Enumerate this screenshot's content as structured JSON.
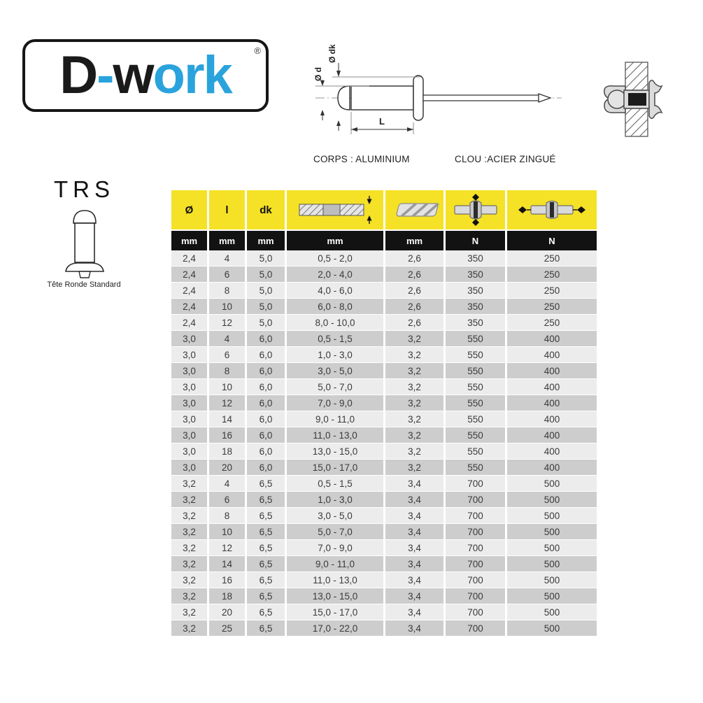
{
  "brand": {
    "name": "D-work",
    "logo_parts": {
      "p1": "D",
      "p2": "-",
      "p3": "w",
      "p4": "ork"
    },
    "registered_mark": "®"
  },
  "drawing": {
    "dim_d": "Ø d",
    "dim_dk": "Ø dk",
    "dim_length": "L",
    "body_material": "CORPS : ALUMINIUM",
    "nail_material": "CLOU :ACIER ZINGUÉ"
  },
  "product": {
    "code": "TRS",
    "head_type": "Tête Ronde Standard"
  },
  "colors": {
    "accent_yellow": "#f5e126",
    "header_black": "#121212",
    "row_light": "#ececec",
    "row_dark": "#cdcdcd",
    "logo_blue": "#2aa3dd"
  },
  "table": {
    "columns": [
      {
        "label": "Ø",
        "unit": "mm",
        "icon": null
      },
      {
        "label": "l",
        "unit": "mm",
        "icon": null
      },
      {
        "label": "dk",
        "unit": "mm",
        "icon": null
      },
      {
        "label": "",
        "unit": "mm",
        "icon": "clamp-thickness-icon"
      },
      {
        "label": "",
        "unit": "mm",
        "icon": "drill-hole-icon"
      },
      {
        "label": "",
        "unit": "N",
        "icon": "shear-strength-icon"
      },
      {
        "label": "",
        "unit": "N",
        "icon": "tensile-strength-icon"
      }
    ],
    "rows": [
      [
        "2,4",
        "4",
        "5,0",
        "0,5 - 2,0",
        "2,6",
        "350",
        "250"
      ],
      [
        "2,4",
        "6",
        "5,0",
        "2,0 - 4,0",
        "2,6",
        "350",
        "250"
      ],
      [
        "2,4",
        "8",
        "5,0",
        "4,0 - 6,0",
        "2,6",
        "350",
        "250"
      ],
      [
        "2,4",
        "10",
        "5,0",
        "6,0 - 8,0",
        "2,6",
        "350",
        "250"
      ],
      [
        "2,4",
        "12",
        "5,0",
        "8,0 - 10,0",
        "2,6",
        "350",
        "250"
      ],
      [
        "3,0",
        "4",
        "6,0",
        "0,5 - 1,5",
        "3,2",
        "550",
        "400"
      ],
      [
        "3,0",
        "6",
        "6,0",
        "1,0 - 3,0",
        "3,2",
        "550",
        "400"
      ],
      [
        "3,0",
        "8",
        "6,0",
        "3,0 - 5,0",
        "3,2",
        "550",
        "400"
      ],
      [
        "3,0",
        "10",
        "6,0",
        "5,0 - 7,0",
        "3,2",
        "550",
        "400"
      ],
      [
        "3,0",
        "12",
        "6,0",
        "7,0 - 9,0",
        "3,2",
        "550",
        "400"
      ],
      [
        "3,0",
        "14",
        "6,0",
        "9,0 - 11,0",
        "3,2",
        "550",
        "400"
      ],
      [
        "3,0",
        "16",
        "6,0",
        "11,0 - 13,0",
        "3,2",
        "550",
        "400"
      ],
      [
        "3,0",
        "18",
        "6,0",
        "13,0 - 15,0",
        "3,2",
        "550",
        "400"
      ],
      [
        "3,0",
        "20",
        "6,0",
        "15,0 - 17,0",
        "3,2",
        "550",
        "400"
      ],
      [
        "3,2",
        "4",
        "6,5",
        "0,5 - 1,5",
        "3,4",
        "700",
        "500"
      ],
      [
        "3,2",
        "6",
        "6,5",
        "1,0 - 3,0",
        "3,4",
        "700",
        "500"
      ],
      [
        "3,2",
        "8",
        "6,5",
        "3,0 - 5,0",
        "3,4",
        "700",
        "500"
      ],
      [
        "3,2",
        "10",
        "6,5",
        "5,0 - 7,0",
        "3,4",
        "700",
        "500"
      ],
      [
        "3,2",
        "12",
        "6,5",
        "7,0 - 9,0",
        "3,4",
        "700",
        "500"
      ],
      [
        "3,2",
        "14",
        "6,5",
        "9,0 - 11,0",
        "3,4",
        "700",
        "500"
      ],
      [
        "3,2",
        "16",
        "6,5",
        "11,0 - 13,0",
        "3,4",
        "700",
        "500"
      ],
      [
        "3,2",
        "18",
        "6,5",
        "13,0 - 15,0",
        "3,4",
        "700",
        "500"
      ],
      [
        "3,2",
        "20",
        "6,5",
        "15,0 - 17,0",
        "3,4",
        "700",
        "500"
      ],
      [
        "3,2",
        "25",
        "6,5",
        "17,0 - 22,0",
        "3,4",
        "700",
        "500"
      ]
    ]
  }
}
